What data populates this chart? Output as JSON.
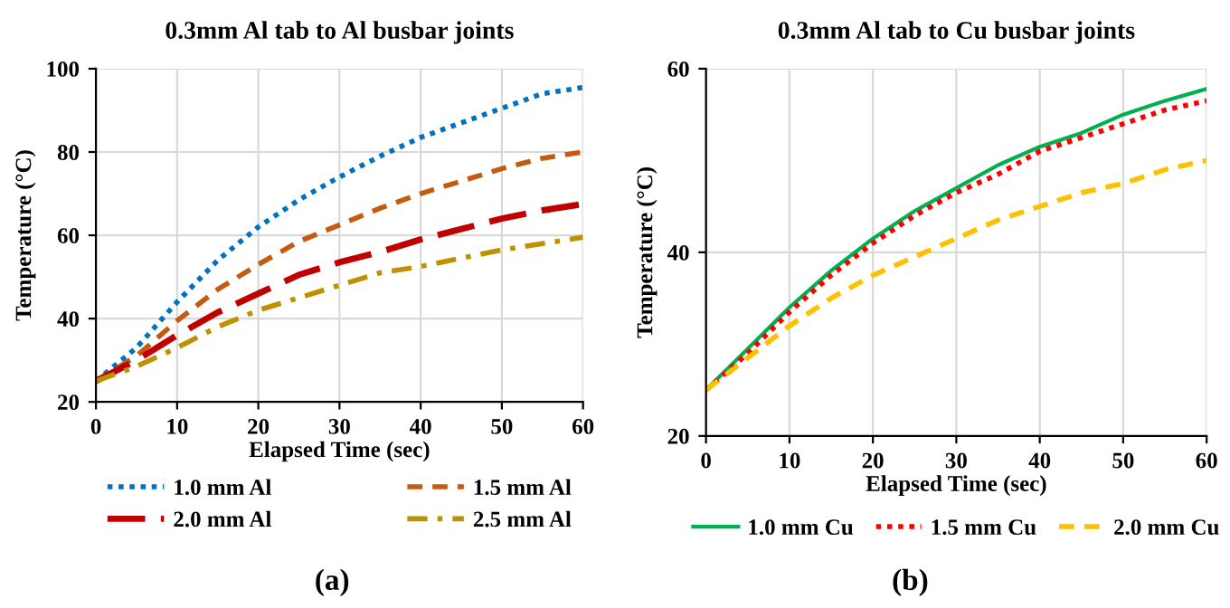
{
  "chart_data": [
    {
      "type": "line",
      "title": "0.3mm Al tab to Al busbar joints",
      "xlabel": "Elapsed Time (sec)",
      "ylabel": "Temperature (°C)",
      "x": [
        0,
        5,
        10,
        15,
        20,
        25,
        30,
        35,
        40,
        45,
        50,
        55,
        60
      ],
      "xlim": [
        0,
        60
      ],
      "xticks": [
        0,
        10,
        20,
        30,
        40,
        50,
        60
      ],
      "ylim": [
        20,
        100
      ],
      "yticks": [
        20,
        40,
        60,
        80,
        100
      ],
      "grid": true,
      "legend": "bottom",
      "annotations": [
        "(a)"
      ],
      "series": [
        {
          "name": "1.0 mm Al",
          "color": "#0070c0",
          "line_style": "dotted",
          "values": [
            25,
            33,
            44,
            54,
            62,
            68.5,
            74,
            79,
            83.5,
            87,
            90.5,
            94,
            95.5
          ]
        },
        {
          "name": "1.5 mm Al",
          "color": "#c55a11",
          "line_style": "dashed",
          "values": [
            25,
            31,
            39.5,
            47,
            53,
            58.5,
            62.5,
            66.5,
            70,
            73,
            76,
            78.5,
            80
          ]
        },
        {
          "name": "2.0 mm Al",
          "color": "#c00000",
          "line_style": "longdash",
          "values": [
            25,
            30,
            36,
            41.5,
            46,
            50.5,
            53.5,
            56,
            59,
            61.5,
            64,
            66,
            67.5
          ]
        },
        {
          "name": "2.5 mm Al",
          "color": "#bf9000",
          "line_style": "dashdot",
          "values": [
            25,
            28.5,
            33,
            38,
            42,
            45,
            48,
            51,
            52.5,
            54.5,
            56.5,
            58,
            59.5
          ]
        }
      ]
    },
    {
      "type": "line",
      "title": "0.3mm Al tab to Cu busbar joints",
      "xlabel": "Elapsed Time (sec)",
      "ylabel": "Temperature (°C)",
      "x": [
        0,
        5,
        10,
        15,
        20,
        25,
        30,
        35,
        40,
        45,
        50,
        55,
        60
      ],
      "xlim": [
        0,
        60
      ],
      "xticks": [
        0,
        10,
        20,
        30,
        40,
        50,
        60
      ],
      "ylim": [
        20,
        60
      ],
      "yticks": [
        20,
        40,
        60
      ],
      "grid": true,
      "legend": "bottom",
      "annotations": [
        "(b)"
      ],
      "series": [
        {
          "name": "1.0 mm Cu",
          "color": "#00b050",
          "line_style": "solid",
          "values": [
            25,
            29.5,
            34,
            38,
            41.5,
            44.5,
            47,
            49.5,
            51.5,
            53,
            55,
            56.5,
            57.8
          ]
        },
        {
          "name": "1.5 mm Cu",
          "color": "#ff0000",
          "line_style": "dotted",
          "values": [
            25,
            29,
            33.5,
            37.5,
            41,
            44,
            46.5,
            48.5,
            51,
            52.5,
            54,
            55.5,
            56.5
          ]
        },
        {
          "name": "2.0 mm Cu",
          "color": "#ffc000",
          "line_style": "dashed",
          "values": [
            25,
            28.5,
            32,
            35,
            37.5,
            39.5,
            41.5,
            43.5,
            45,
            46.5,
            47.5,
            49,
            50
          ]
        }
      ]
    }
  ]
}
